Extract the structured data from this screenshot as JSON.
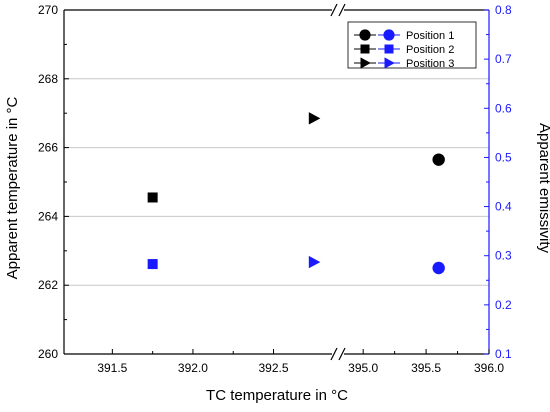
{
  "chart_data": {
    "type": "scatter",
    "x_axis": {
      "label": "TC temperature in °C",
      "segments": [
        {
          "range": [
            391.2,
            392.9
          ],
          "ticks": [
            391.5,
            392.0,
            392.5
          ],
          "tick_labels": [
            "391.5",
            "392.0",
            "392.5"
          ]
        },
        {
          "range": [
            394.8,
            396.0
          ],
          "ticks": [
            395.0,
            395.5,
            396.0
          ],
          "tick_labels": [
            "395.0",
            "395.5",
            "396.0"
          ]
        }
      ],
      "break": true
    },
    "y_axis_left": {
      "label": "Apparent temperature in °C",
      "range": [
        260,
        270
      ],
      "ticks": [
        260,
        262,
        264,
        266,
        268,
        270
      ],
      "tick_labels": [
        "260",
        "262",
        "264",
        "266",
        "268",
        "270"
      ],
      "break": true
    },
    "y_axis_right": {
      "label": "Apparent emissivity",
      "range": [
        0.1,
        0.8
      ],
      "ticks": [
        0.1,
        0.2,
        0.3,
        0.4,
        0.5,
        0.6,
        0.7,
        0.8
      ],
      "tick_labels": [
        "0.1",
        "0.2",
        "0.3",
        "0.4",
        "0.5",
        "0.6",
        "0.7",
        "0.8"
      ],
      "color": "#1a1aff"
    },
    "grid": true,
    "legend_position": "top-right",
    "series": [
      {
        "name": "Position 1",
        "marker": "circle",
        "temperature": {
          "x": 395.6,
          "y": 265.65,
          "color": "#000000"
        },
        "emissivity": {
          "x": 395.6,
          "y": 0.275,
          "color": "#1a1aff"
        }
      },
      {
        "name": "Position 2",
        "marker": "square",
        "temperature": {
          "x": 391.75,
          "y": 264.55,
          "color": "#000000"
        },
        "emissivity": {
          "x": 391.75,
          "y": 0.283,
          "color": "#1a1aff"
        }
      },
      {
        "name": "Position 3",
        "marker": "triangle-right",
        "temperature": {
          "x": 392.75,
          "y": 266.85,
          "color": "#000000"
        },
        "emissivity": {
          "x": 392.75,
          "y": 0.287,
          "color": "#1a1aff"
        }
      }
    ]
  }
}
